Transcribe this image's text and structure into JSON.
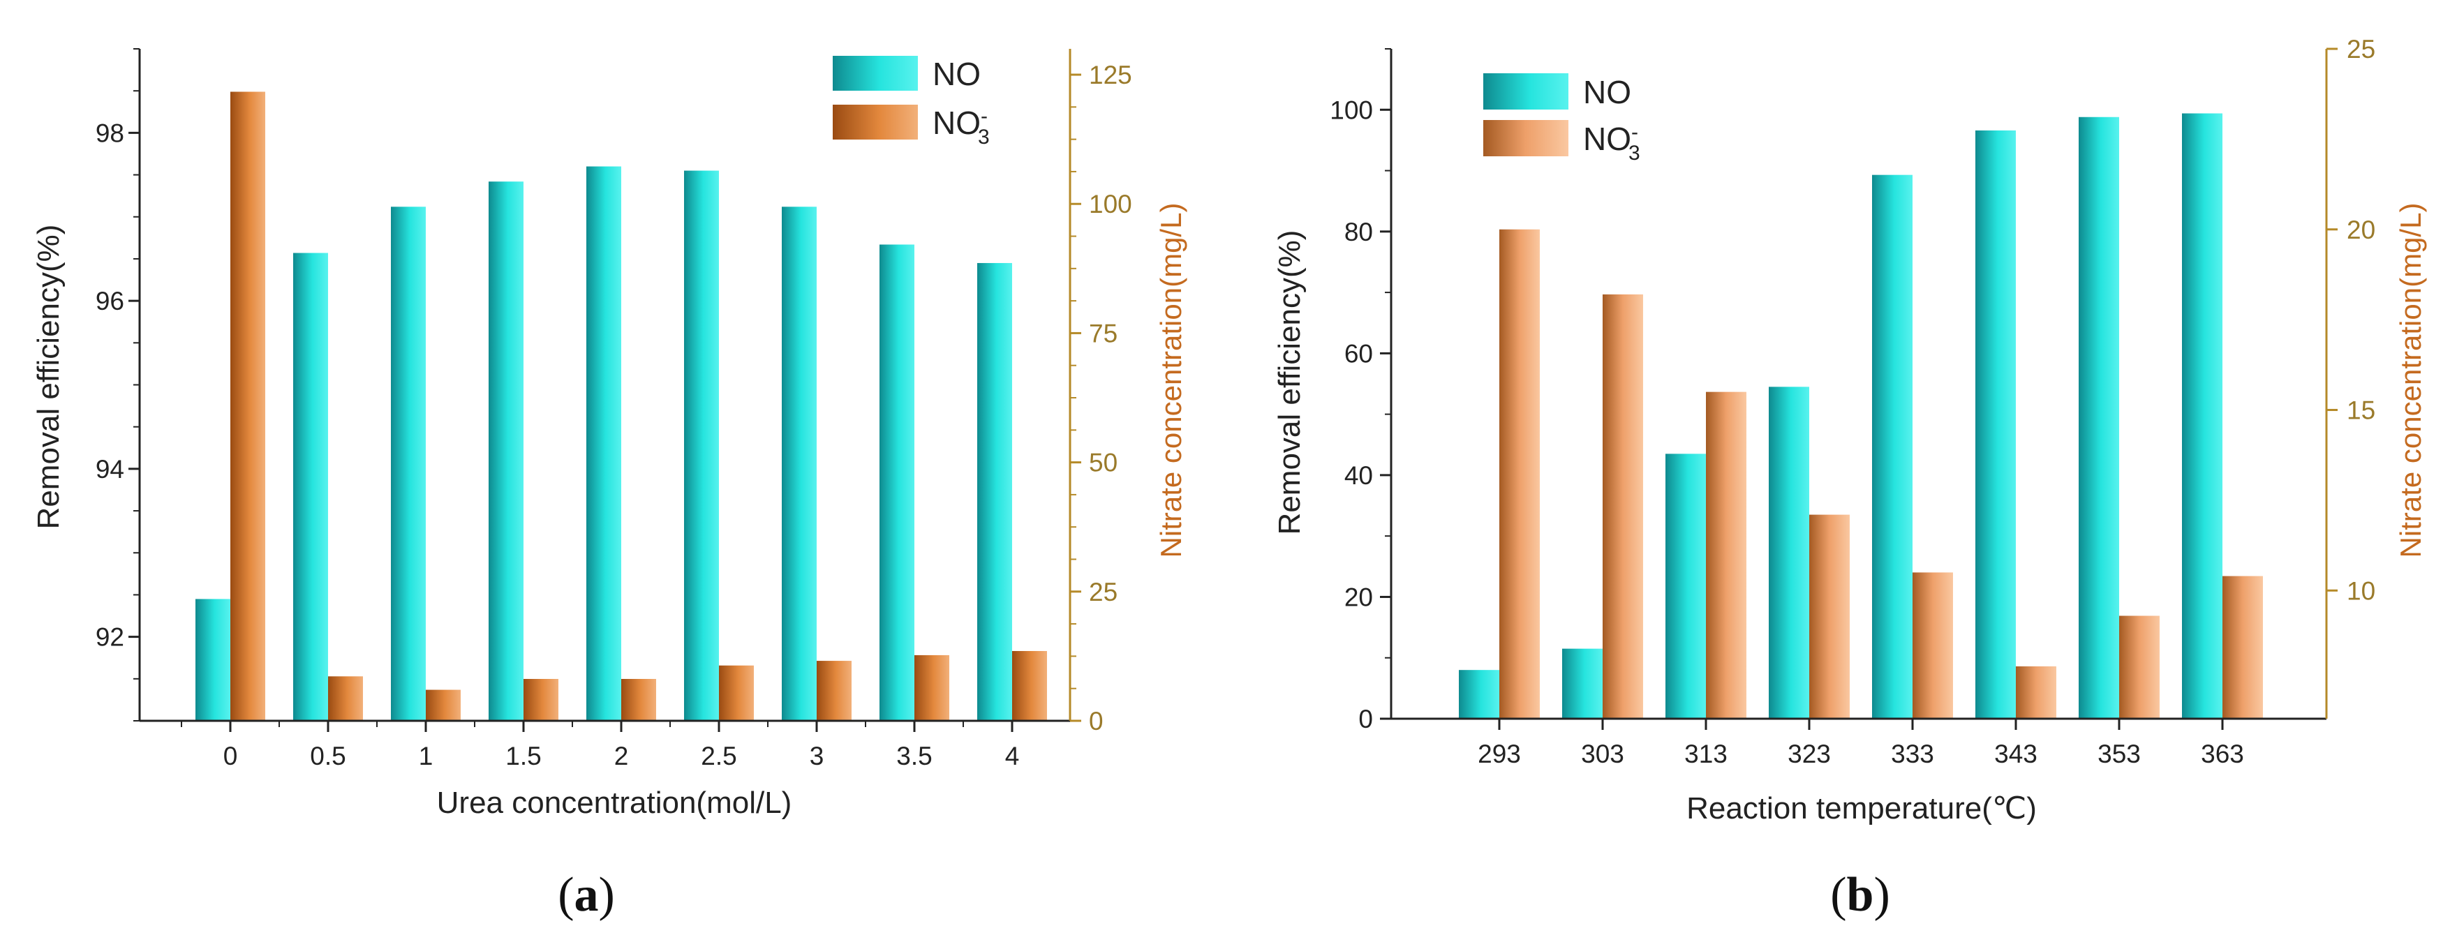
{
  "colors": {
    "no_bar": "#1fd6d2",
    "nitrate_bar": "#de8a4a",
    "right_axis": "#b58a28",
    "right_title": "#c46a1f"
  },
  "chart_data": [
    {
      "type": "bar",
      "panel": "(a)",
      "panel_letter": "a",
      "categories": [
        "0",
        "0.5",
        "1",
        "1.5",
        "2",
        "2.5",
        "3",
        "3.5",
        "4"
      ],
      "xlabel": "Urea concentration(mol/L)",
      "ylabel": "Removal efficiency(%)",
      "y2label": "Nitrate concentration(mg/L)",
      "ylim": [
        91.0,
        99.0
      ],
      "y2lim": [
        0,
        130
      ],
      "yticks": [
        "92",
        "94",
        "96",
        "98"
      ],
      "y2ticks": [
        "0",
        "25",
        "50",
        "75",
        "100",
        "125"
      ],
      "legend_position": "top-right",
      "grid": false,
      "series": [
        {
          "name": "NO",
          "axis": "left",
          "values": [
            92.45,
            96.57,
            97.12,
            97.42,
            97.6,
            97.55,
            97.12,
            96.67,
            96.45
          ]
        },
        {
          "name": "NO3-",
          "axis": "right",
          "values": [
            121.7,
            8.6,
            6.0,
            8.1,
            8.1,
            10.7,
            11.6,
            12.7,
            13.5
          ]
        }
      ]
    },
    {
      "type": "bar",
      "panel": "(b)",
      "panel_letter": "b",
      "categories": [
        "293",
        "303",
        "313",
        "323",
        "333",
        "343",
        "353",
        "363"
      ],
      "xlabel": "Reaction temperature(℃)",
      "ylabel": "Removal efficiency(%)",
      "y2label": "Nitrate concentration(mg/L)",
      "ylim": [
        0,
        110
      ],
      "y2lim": [
        6.45,
        25
      ],
      "yticks": [
        "0",
        "20",
        "40",
        "60",
        "80",
        "100"
      ],
      "y2ticks": [
        "10",
        "15",
        "20",
        "25"
      ],
      "legend_position": "top-left",
      "grid": false,
      "series": [
        {
          "name": "NO",
          "axis": "left",
          "values": [
            8,
            11.5,
            43.5,
            54.5,
            89.3,
            96.6,
            98.8,
            99.4
          ]
        },
        {
          "name": "NO3-",
          "axis": "right",
          "values": [
            20.0,
            18.2,
            15.5,
            12.1,
            10.5,
            7.9,
            9.3,
            10.4
          ]
        }
      ]
    }
  ]
}
